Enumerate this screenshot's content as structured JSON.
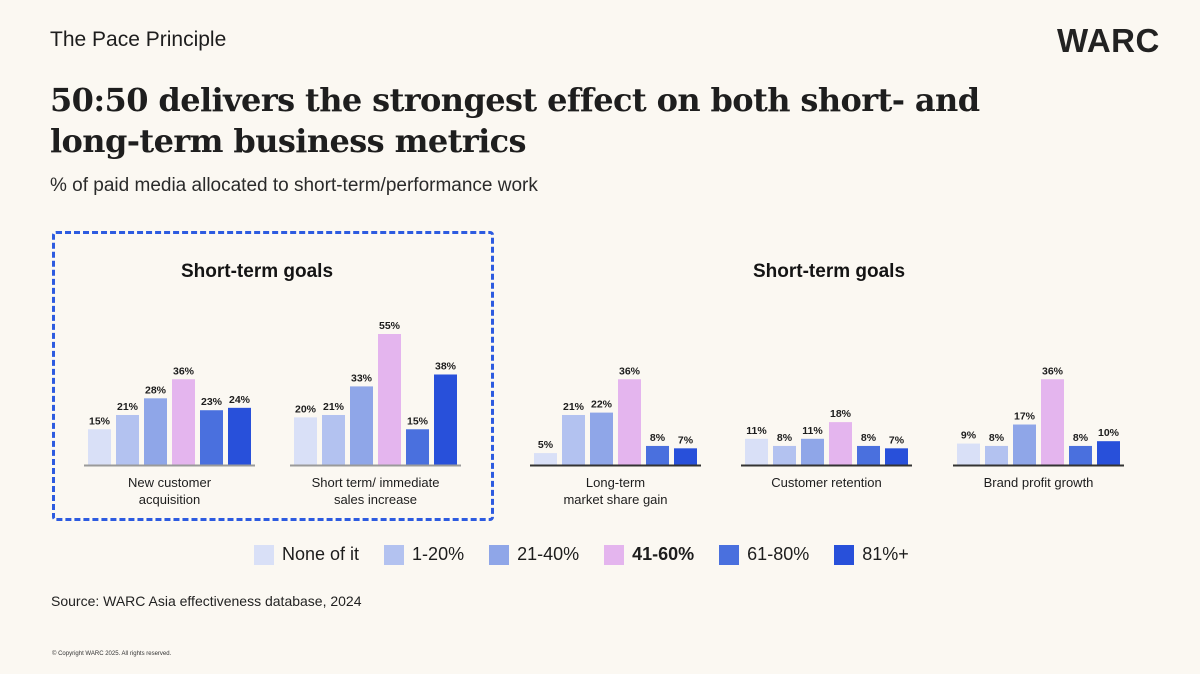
{
  "header": {
    "kicker": "The Pace Principle",
    "logo": "WARC",
    "title": "50:50 delivers the strongest effect on both short- and long-term business metrics",
    "subtitle": "% of paid media allocated to short-term/performance work"
  },
  "sections": [
    {
      "title": "Short-term goals",
      "highlighted": true
    },
    {
      "title": "Short-term goals",
      "highlighted": false
    }
  ],
  "legend": [
    {
      "label": "None of it",
      "color": "#d9e0f7",
      "bold": false
    },
    {
      "label": "1-20%",
      "color": "#b3c2f0",
      "bold": false
    },
    {
      "label": "21-40%",
      "color": "#8fa6e8",
      "bold": false
    },
    {
      "label": "41-60%",
      "color": "#e4b5ee",
      "bold": true
    },
    {
      "label": "61-80%",
      "color": "#4a70de",
      "bold": false
    },
    {
      "label": "81%+",
      "color": "#2850da",
      "bold": false
    }
  ],
  "chart_data": {
    "type": "bar",
    "title": "50:50 delivers the strongest effect on both short- and long-term business metrics",
    "subtitle": "% of paid media allocated to short-term/performance work",
    "xlabel": "",
    "ylabel": "",
    "ylim": [
      0,
      60
    ],
    "grid": false,
    "legend_position": "bottom",
    "series_names": [
      "None of it",
      "1-20%",
      "21-40%",
      "41-60%",
      "61-80%",
      "81%+"
    ],
    "series_colors": [
      "#d9e0f7",
      "#b3c2f0",
      "#8fa6e8",
      "#e4b5ee",
      "#4a70de",
      "#2850da"
    ],
    "groups": [
      {
        "label": "New customer acquisition",
        "label_lines": [
          "New customer",
          "acquisition"
        ],
        "section": 0,
        "values": [
          15,
          21,
          28,
          36,
          23,
          24
        ]
      },
      {
        "label": "Short term/ immediate sales increase",
        "label_lines": [
          "Short term/ immediate",
          "sales increase"
        ],
        "section": 0,
        "values": [
          20,
          21,
          33,
          55,
          15,
          38
        ]
      },
      {
        "label": "Long-term market share gain",
        "label_lines": [
          "Long-term",
          "market share gain"
        ],
        "section": 1,
        "values": [
          5,
          21,
          22,
          36,
          8,
          7
        ]
      },
      {
        "label": "Customer retention",
        "label_lines": [
          "Customer retention"
        ],
        "section": 1,
        "values": [
          11,
          8,
          11,
          18,
          8,
          7
        ]
      },
      {
        "label": "Brand profit growth",
        "label_lines": [
          "Brand profit growth"
        ],
        "section": 1,
        "values": [
          9,
          8,
          17,
          36,
          8,
          10
        ]
      }
    ],
    "value_suffix": "%"
  },
  "footer": {
    "source": "Source: WARC Asia effectiveness database, 2024",
    "copyright": "© Copyright WARC 2025. All rights reserved."
  }
}
